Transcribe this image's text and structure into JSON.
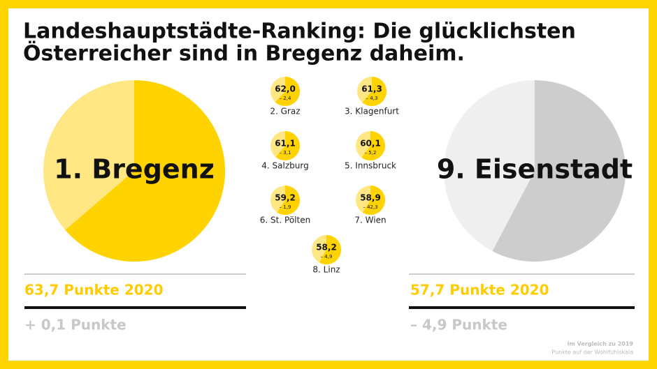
{
  "title": [
    "Landeshauptstädte-Ranking: Die glücklichsten",
    "Österreicher sind in Bregenz daheim."
  ],
  "footnote": [
    "im Vergleich zu 2019",
    "Punkte auf der Wohlfühlskala"
  ],
  "chart_data": [
    {
      "type": "pie",
      "title": "1. Bregenz",
      "values": [
        63.7
      ],
      "value_labels": [
        "63,7 Punkte 2020"
      ],
      "annotation": "+ 0,1 Punkte",
      "ylim": [
        0,
        100
      ],
      "colors": [
        "#ffd300",
        "#ffe783"
      ]
    },
    {
      "type": "pie",
      "title": "2. Graz",
      "values": [
        62.0
      ],
      "value_labels": [
        "62,0"
      ],
      "annotation": "– 2,4",
      "ylim": [
        0,
        100
      ],
      "colors": [
        "#ffd300",
        "#ffe783"
      ]
    },
    {
      "type": "pie",
      "title": "3. Klagenfurt",
      "values": [
        61.3
      ],
      "value_labels": [
        "61,3"
      ],
      "annotation": "– 4,3",
      "ylim": [
        0,
        100
      ],
      "colors": [
        "#ffd300",
        "#ffe783"
      ]
    },
    {
      "type": "pie",
      "title": "4. Salzburg",
      "values": [
        61.1
      ],
      "value_labels": [
        "61,1"
      ],
      "annotation": "– 3,1",
      "ylim": [
        0,
        100
      ],
      "colors": [
        "#ffd300",
        "#ffe783"
      ]
    },
    {
      "type": "pie",
      "title": "5. Innsbruck",
      "values": [
        60.1
      ],
      "value_labels": [
        "60,1"
      ],
      "annotation": "– 5,2",
      "ylim": [
        0,
        100
      ],
      "colors": [
        "#ffd300",
        "#ffe783"
      ]
    },
    {
      "type": "pie",
      "title": "6. St. Pölten",
      "values": [
        59.2
      ],
      "value_labels": [
        "59,2"
      ],
      "annotation": "– 1,9",
      "ylim": [
        0,
        100
      ],
      "colors": [
        "#ffd300",
        "#ffe783"
      ]
    },
    {
      "type": "pie",
      "title": "7. Wien",
      "values": [
        58.9
      ],
      "value_labels": [
        "58,9"
      ],
      "annotation": "– 42,3",
      "ylim": [
        0,
        100
      ],
      "colors": [
        "#ffd300",
        "#ffe783"
      ]
    },
    {
      "type": "pie",
      "title": "8. Linz",
      "values": [
        58.2
      ],
      "value_labels": [
        "58,2"
      ],
      "annotation": "– 4,9",
      "ylim": [
        0,
        100
      ],
      "colors": [
        "#ffd300",
        "#ffe783"
      ]
    },
    {
      "type": "pie",
      "title": "9. Eisenstadt",
      "values": [
        57.7
      ],
      "value_labels": [
        "57,7 Punkte 2020"
      ],
      "annotation": "– 4,9 Punkte",
      "ylim": [
        0,
        100
      ],
      "colors": [
        "#cdcdcd",
        "#efefef"
      ]
    }
  ]
}
